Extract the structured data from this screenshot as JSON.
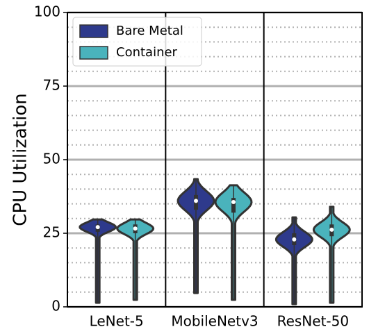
{
  "chart_data": {
    "type": "violin",
    "ylabel": "CPU Utilization",
    "categories": [
      "LeNet-5",
      "MobileNetv3",
      "ResNet-50"
    ],
    "series": [
      {
        "name": "Bare Metal",
        "color": "#2e3a8c",
        "min": [
          1.4,
          4.7,
          0.9
        ],
        "q1": [
          25.5,
          33,
          21
        ],
        "median": [
          27.1,
          36,
          22.9
        ],
        "q3": [
          28,
          38,
          25
        ],
        "max": [
          29.7,
          43.4,
          30.4
        ]
      },
      {
        "name": "Container",
        "color": "#4ab3bc",
        "min": [
          2.4,
          2.4,
          1.4
        ],
        "q1": [
          25,
          32,
          24
        ],
        "median": [
          26.6,
          35.6,
          26.2
        ],
        "q3": [
          28,
          37,
          28
        ],
        "max": [
          29.7,
          41.3,
          34
        ]
      }
    ],
    "ylim": [
      0,
      100
    ],
    "yticks": [
      0,
      25,
      50,
      75,
      100
    ],
    "yminorticks": [
      5,
      10,
      15,
      20,
      30,
      35,
      40,
      45,
      55,
      60,
      65,
      70,
      80,
      85,
      90,
      95
    ],
    "grid": true,
    "legend": "upper left"
  }
}
